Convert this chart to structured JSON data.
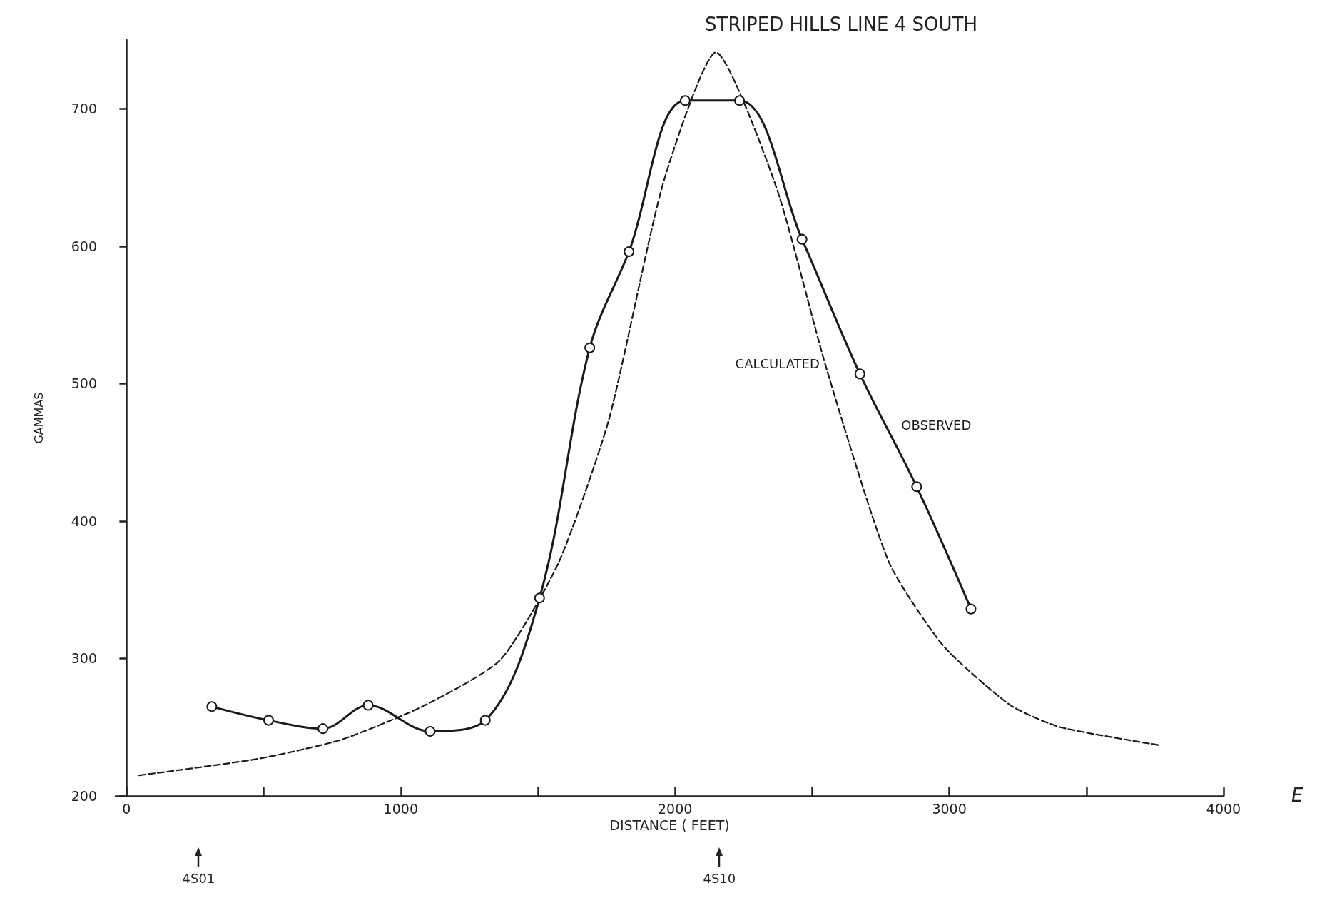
{
  "chart_data": {
    "type": "line",
    "title": "STRIPED HILLS LINE 4 SOUTH",
    "xlabel": "DISTANCE ( FEET)",
    "ylabel": "GAMMAS",
    "xlim": [
      -40,
      4000
    ],
    "xticks": [
      0,
      {
        "value": 500,
        "label": null
      },
      1000,
      {
        "value": 1500,
        "label": null
      },
      2000,
      {
        "value": 2500,
        "label": null
      },
      3000,
      {
        "value": 3500,
        "label": null
      },
      4000
    ],
    "ylim": [
      200,
      750
    ],
    "yticks": [
      200,
      300,
      400,
      500,
      600,
      700
    ],
    "grid": false,
    "legend": false,
    "series": [
      {
        "name": "OBSERVED",
        "color": "#1a1a1a",
        "marker": "circle",
        "line_style": "solid",
        "x": [
          311,
          518,
          716,
          881,
          1107,
          1308,
          1506,
          1689,
          1832,
          2037,
          2235,
          2463,
          2674,
          2881,
          3079
        ],
        "values": [
          265,
          255,
          249,
          266,
          247,
          255,
          344,
          526,
          596,
          706,
          706,
          605,
          507,
          425,
          336
        ]
      },
      {
        "name": "CALCULATED",
        "color": "#1a1a1a",
        "marker": "none",
        "line_style": "dashed",
        "x": [
          46,
          479,
          784,
          1088,
          1363,
          1576,
          1759,
          1957,
          2149,
          2369,
          2552,
          2780,
          2979,
          3223,
          3405,
          3765
        ],
        "values": [
          215,
          227,
          241,
          266,
          299,
          370,
          474,
          646,
          741,
          643,
          511,
          370,
          309,
          266,
          250,
          237
        ]
      }
    ],
    "annotations": [
      "4S01",
      "4S10",
      "E"
    ]
  }
}
